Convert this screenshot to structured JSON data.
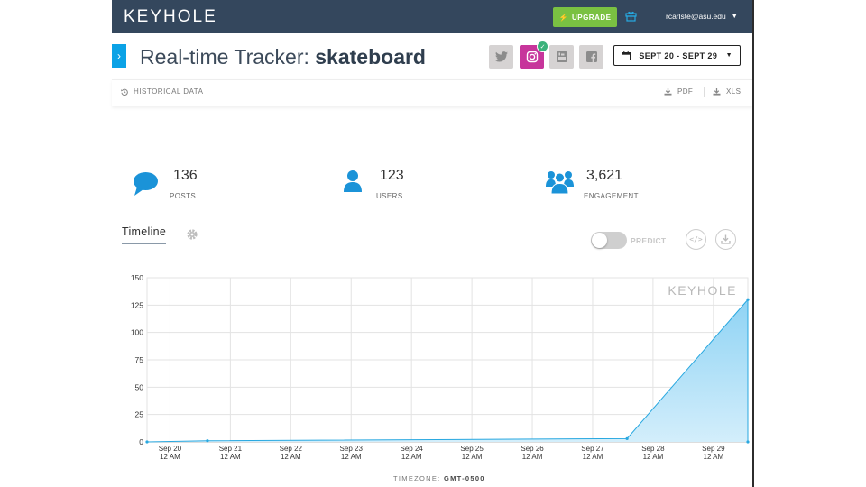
{
  "header": {
    "logo": "KEYHOLE",
    "upgrade_label": "UPGRADE",
    "user_email": "rcarlste@asu.edu"
  },
  "tracker": {
    "title_prefix": "Real-time Tracker: ",
    "keyword": "skateboard",
    "social": [
      {
        "name": "twitter",
        "active": false
      },
      {
        "name": "instagram",
        "active": true
      },
      {
        "name": "youtube",
        "active": false
      },
      {
        "name": "facebook",
        "active": false
      }
    ],
    "date_range": "SEPT 20 - SEPT 29"
  },
  "subbar": {
    "historical_label": "HISTORICAL DATA",
    "pdf_label": "PDF",
    "xls_label": "XLS"
  },
  "stats": [
    {
      "icon": "speech-bubble-icon",
      "value": "136",
      "label": "POSTS"
    },
    {
      "icon": "user-icon",
      "value": "123",
      "label": "USERS"
    },
    {
      "icon": "group-icon",
      "value": "3,621",
      "label": "ENGAGEMENT"
    }
  ],
  "timeline": {
    "tab_label": "Timeline",
    "predict_label": "PREDICT",
    "predict_enabled": false,
    "timezone_label": "TIMEZONE:",
    "timezone_value": "GMT-0500"
  },
  "chart_data": {
    "type": "area",
    "watermark": "KEYHOLE",
    "x_labels": [
      [
        "Sep 20",
        "12 AM"
      ],
      [
        "Sep 21",
        "12 AM"
      ],
      [
        "Sep 22",
        "12 AM"
      ],
      [
        "Sep 23",
        "12 AM"
      ],
      [
        "Sep 24",
        "12 AM"
      ],
      [
        "Sep 25",
        "12 AM"
      ],
      [
        "Sep 26",
        "12 AM"
      ],
      [
        "Sep 27",
        "12 AM"
      ],
      [
        "Sep 28",
        "12 AM"
      ],
      [
        "Sep 29",
        "12 AM"
      ]
    ],
    "y_ticks": [
      0,
      25,
      50,
      75,
      100,
      125,
      150
    ],
    "ylim": [
      0,
      150
    ],
    "xlim": [
      -0.38,
      9.57
    ],
    "grid": true,
    "color": "#29a8e0",
    "points": [
      {
        "x": -0.38,
        "y": 0
      },
      {
        "x": 0.62,
        "y": 1
      },
      {
        "x": 7.57,
        "y": 3
      },
      {
        "x": 9.57,
        "y": 130
      },
      {
        "x": 9.57,
        "y": 0
      }
    ]
  }
}
